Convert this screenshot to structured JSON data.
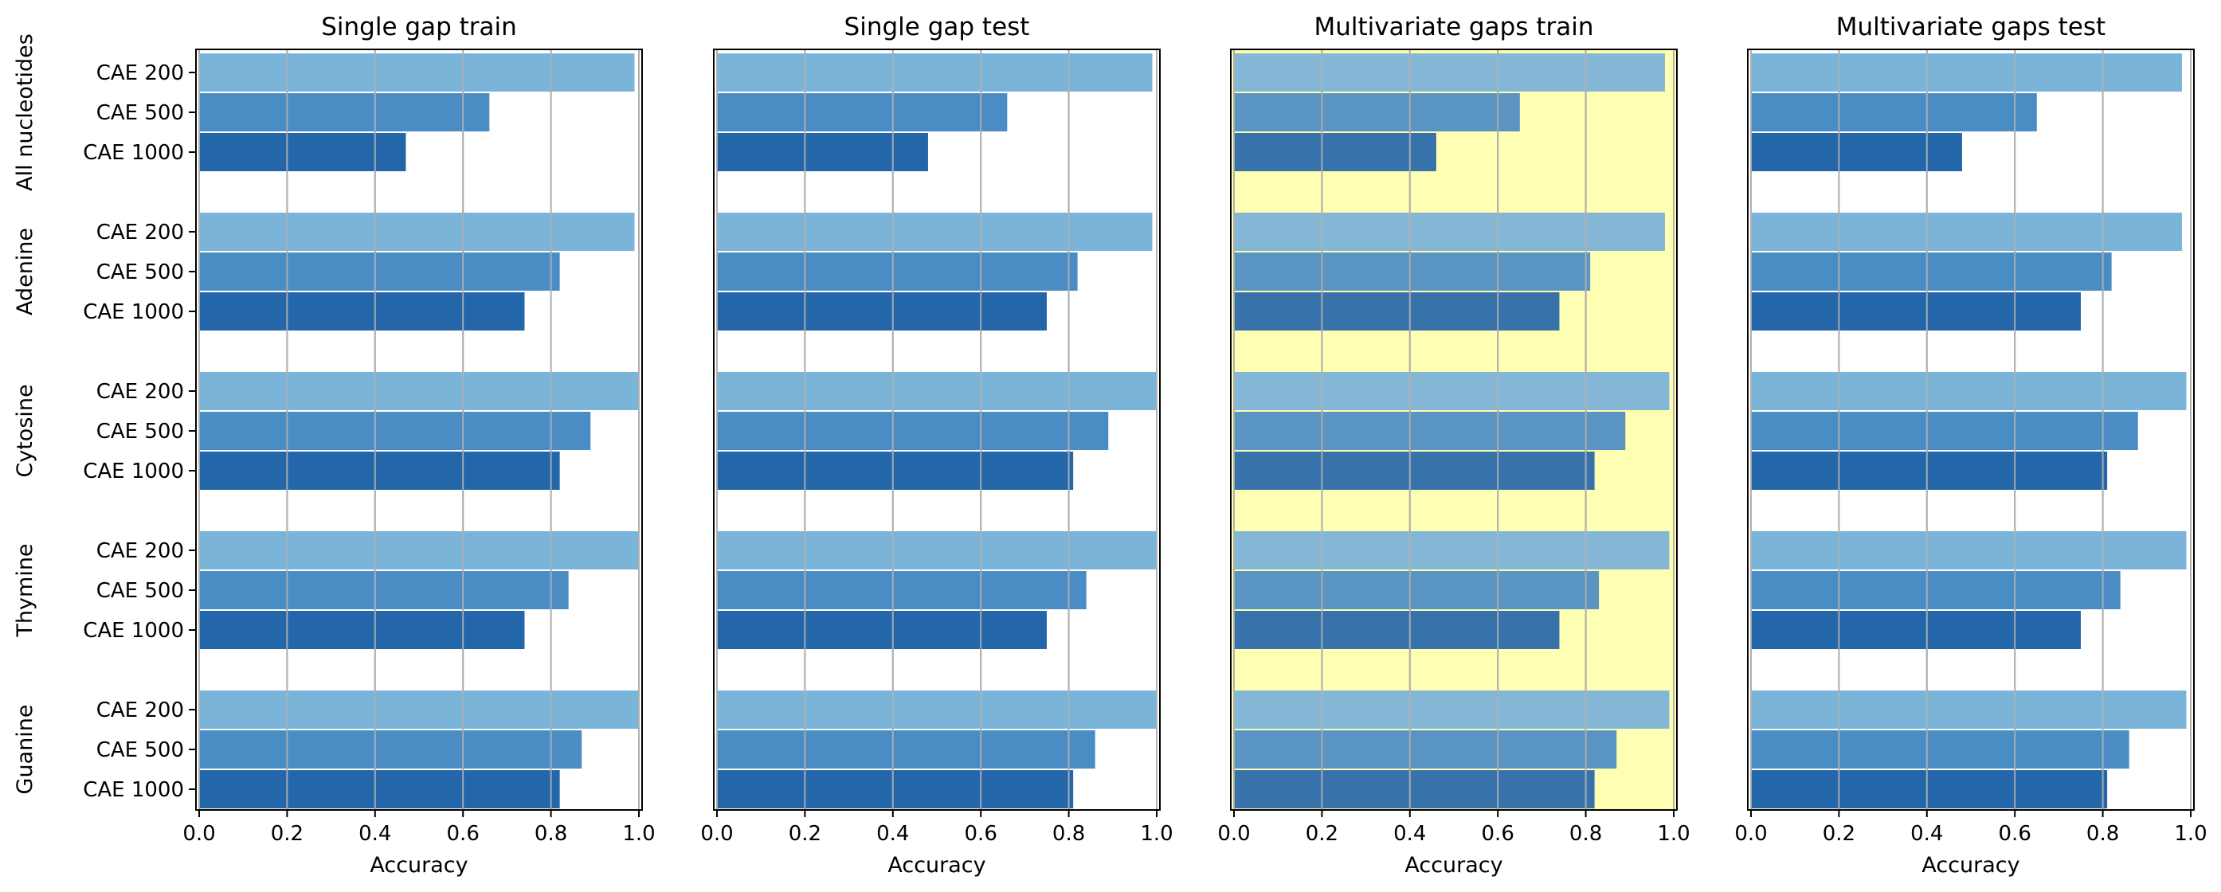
{
  "chart_data": [
    {
      "type": "bar",
      "orientation": "horizontal",
      "title": "Single gap train",
      "xlabel": "Accuracy",
      "xlim": [
        0,
        1
      ],
      "xticks": [
        "0.0",
        "0.2",
        "0.4",
        "0.6",
        "0.8",
        "1.0"
      ],
      "grid": "vertical",
      "highlight": null,
      "groups": [
        {
          "name": "All nucleotides",
          "bars": [
            {
              "label": "CAE 200",
              "value": 0.99
            },
            {
              "label": "CAE 500",
              "value": 0.66
            },
            {
              "label": "CAE 1000",
              "value": 0.47
            }
          ]
        },
        {
          "name": "Adenine",
          "bars": [
            {
              "label": "CAE 200",
              "value": 0.99
            },
            {
              "label": "CAE 500",
              "value": 0.82
            },
            {
              "label": "CAE 1000",
              "value": 0.74
            }
          ]
        },
        {
          "name": "Cytosine",
          "bars": [
            {
              "label": "CAE 200",
              "value": 1.0
            },
            {
              "label": "CAE 500",
              "value": 0.89
            },
            {
              "label": "CAE 1000",
              "value": 0.82
            }
          ]
        },
        {
          "name": "Thymine",
          "bars": [
            {
              "label": "CAE 200",
              "value": 1.0
            },
            {
              "label": "CAE 500",
              "value": 0.84
            },
            {
              "label": "CAE 1000",
              "value": 0.74
            }
          ]
        },
        {
          "name": "Guanine",
          "bars": [
            {
              "label": "CAE 200",
              "value": 1.0
            },
            {
              "label": "CAE 500",
              "value": 0.87
            },
            {
              "label": "CAE 1000",
              "value": 0.82
            }
          ]
        }
      ]
    },
    {
      "type": "bar",
      "orientation": "horizontal",
      "title": "Single gap test",
      "xlabel": "Accuracy",
      "xlim": [
        0,
        1
      ],
      "xticks": [
        "0.0",
        "0.2",
        "0.4",
        "0.6",
        "0.8",
        "1.0"
      ],
      "grid": "vertical",
      "highlight": null,
      "groups": [
        {
          "name": "All nucleotides",
          "bars": [
            {
              "label": "CAE 200",
              "value": 0.99
            },
            {
              "label": "CAE 500",
              "value": 0.66
            },
            {
              "label": "CAE 1000",
              "value": 0.48
            }
          ]
        },
        {
          "name": "Adenine",
          "bars": [
            {
              "label": "CAE 200",
              "value": 0.99
            },
            {
              "label": "CAE 500",
              "value": 0.82
            },
            {
              "label": "CAE 1000",
              "value": 0.75
            }
          ]
        },
        {
          "name": "Cytosine",
          "bars": [
            {
              "label": "CAE 200",
              "value": 1.0
            },
            {
              "label": "CAE 500",
              "value": 0.89
            },
            {
              "label": "CAE 1000",
              "value": 0.81
            }
          ]
        },
        {
          "name": "Thymine",
          "bars": [
            {
              "label": "CAE 200",
              "value": 1.0
            },
            {
              "label": "CAE 500",
              "value": 0.84
            },
            {
              "label": "CAE 1000",
              "value": 0.75
            }
          ]
        },
        {
          "name": "Guanine",
          "bars": [
            {
              "label": "CAE 200",
              "value": 1.0
            },
            {
              "label": "CAE 500",
              "value": 0.86
            },
            {
              "label": "CAE 1000",
              "value": 0.81
            }
          ]
        }
      ]
    },
    {
      "type": "bar",
      "orientation": "horizontal",
      "title": "Multivariate gaps train",
      "xlabel": "Accuracy",
      "xlim": [
        0,
        1
      ],
      "xticks": [
        "0.0",
        "0.2",
        "0.4",
        "0.6",
        "0.8",
        "1.0"
      ],
      "grid": "vertical",
      "highlight": "#ffffb3",
      "groups": [
        {
          "name": "All nucleotides",
          "bars": [
            {
              "label": "CAE 200",
              "value": 0.98
            },
            {
              "label": "CAE 500",
              "value": 0.65
            },
            {
              "label": "CAE 1000",
              "value": 0.46
            }
          ]
        },
        {
          "name": "Adenine",
          "bars": [
            {
              "label": "CAE 200",
              "value": 0.98
            },
            {
              "label": "CAE 500",
              "value": 0.81
            },
            {
              "label": "CAE 1000",
              "value": 0.74
            }
          ]
        },
        {
          "name": "Cytosine",
          "bars": [
            {
              "label": "CAE 200",
              "value": 0.99
            },
            {
              "label": "CAE 500",
              "value": 0.89
            },
            {
              "label": "CAE 1000",
              "value": 0.82
            }
          ]
        },
        {
          "name": "Thymine",
          "bars": [
            {
              "label": "CAE 200",
              "value": 0.99
            },
            {
              "label": "CAE 500",
              "value": 0.83
            },
            {
              "label": "CAE 1000",
              "value": 0.74
            }
          ]
        },
        {
          "name": "Guanine",
          "bars": [
            {
              "label": "CAE 200",
              "value": 0.99
            },
            {
              "label": "CAE 500",
              "value": 0.87
            },
            {
              "label": "CAE 1000",
              "value": 0.82
            }
          ]
        }
      ]
    },
    {
      "type": "bar",
      "orientation": "horizontal",
      "title": "Multivariate gaps test",
      "xlabel": "Accuracy",
      "xlim": [
        0,
        1
      ],
      "xticks": [
        "0.0",
        "0.2",
        "0.4",
        "0.6",
        "0.8",
        "1.0"
      ],
      "grid": "vertical",
      "highlight": null,
      "groups": [
        {
          "name": "All nucleotides",
          "bars": [
            {
              "label": "CAE 200",
              "value": 0.98
            },
            {
              "label": "CAE 500",
              "value": 0.65
            },
            {
              "label": "CAE 1000",
              "value": 0.48
            }
          ]
        },
        {
          "name": "Adenine",
          "bars": [
            {
              "label": "CAE 200",
              "value": 0.98
            },
            {
              "label": "CAE 500",
              "value": 0.82
            },
            {
              "label": "CAE 1000",
              "value": 0.75
            }
          ]
        },
        {
          "name": "Cytosine",
          "bars": [
            {
              "label": "CAE 200",
              "value": 0.99
            },
            {
              "label": "CAE 500",
              "value": 0.88
            },
            {
              "label": "CAE 1000",
              "value": 0.81
            }
          ]
        },
        {
          "name": "Thymine",
          "bars": [
            {
              "label": "CAE 200",
              "value": 0.99
            },
            {
              "label": "CAE 500",
              "value": 0.84
            },
            {
              "label": "CAE 1000",
              "value": 0.75
            }
          ]
        },
        {
          "name": "Guanine",
          "bars": [
            {
              "label": "CAE 200",
              "value": 0.99
            },
            {
              "label": "CAE 500",
              "value": 0.86
            },
            {
              "label": "CAE 1000",
              "value": 0.81
            }
          ]
        }
      ]
    }
  ],
  "colors": {
    "CAE 200": "#7ab5d9",
    "CAE 500": "#4a8dc4",
    "CAE 1000": "#2466aa",
    "highlight_bar_tint": "#c8c8b4",
    "grid": "#b0b0b0",
    "axis": "#000000"
  }
}
